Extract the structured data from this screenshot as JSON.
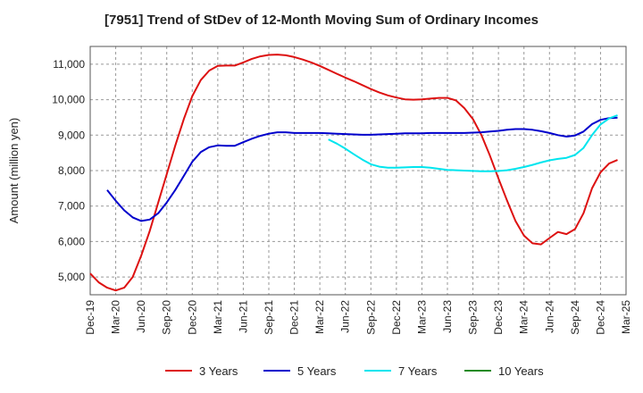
{
  "chart_data": {
    "type": "line",
    "title": "[7951]  Trend of StDev of 12-Month Moving Sum of Ordinary Incomes",
    "xlabel": "",
    "ylabel": "Amount (million yen)",
    "ylim": [
      4500,
      11500
    ],
    "yticks": [
      5000,
      6000,
      7000,
      8000,
      9000,
      10000,
      11000
    ],
    "ytick_labels": [
      "5,000",
      "6,000",
      "7,000",
      "8,000",
      "9,000",
      "10,000",
      "11,000"
    ],
    "x_start": "Dec-19",
    "xtick_labels": [
      "Dec-19",
      "Mar-20",
      "Jun-20",
      "Sep-20",
      "Dec-20",
      "Mar-21",
      "Jun-21",
      "Sep-21",
      "Dec-21",
      "Mar-22",
      "Jun-22",
      "Sep-22",
      "Dec-22",
      "Mar-23",
      "Jun-23",
      "Sep-23",
      "Dec-23",
      "Mar-24",
      "Jun-24",
      "Sep-24",
      "Dec-24",
      "Mar-25"
    ],
    "grid": true,
    "legend_position": "bottom",
    "series": [
      {
        "name": "3 Years",
        "color": "#dd1111",
        "start": "Dec-19",
        "values": [
          5100,
          4850,
          4700,
          4620,
          4700,
          5000,
          5600,
          6300,
          7100,
          7900,
          8700,
          9450,
          10100,
          10550,
          10820,
          10950,
          10960,
          10960,
          11050,
          11150,
          11220,
          11260,
          11270,
          11250,
          11200,
          11130,
          11050,
          10950,
          10840,
          10730,
          10620,
          10520,
          10410,
          10300,
          10200,
          10120,
          10060,
          10010,
          10000,
          10010,
          10030,
          10050,
          10050,
          9980,
          9760,
          9450,
          9000,
          8420,
          7780,
          7160,
          6580,
          6170,
          5950,
          5920,
          6100,
          6270,
          6210,
          6350,
          6800,
          7500,
          7950,
          8200,
          8300
        ]
      },
      {
        "name": "5 Years",
        "color": "#0000cc",
        "start": "Dec-19",
        "values": [
          null,
          null,
          7450,
          7150,
          6880,
          6680,
          6580,
          6620,
          6800,
          7100,
          7450,
          7850,
          8250,
          8520,
          8660,
          8710,
          8700,
          8700,
          8800,
          8900,
          8980,
          9040,
          9080,
          9080,
          9060,
          9060,
          9060,
          9060,
          9050,
          9040,
          9030,
          9020,
          9010,
          9010,
          9020,
          9030,
          9040,
          9050,
          9050,
          9050,
          9060,
          9060,
          9060,
          9060,
          9060,
          9070,
          9080,
          9100,
          9120,
          9150,
          9170,
          9170,
          9150,
          9110,
          9060,
          9000,
          8960,
          8990,
          9100,
          9310,
          9430,
          9480,
          9490
        ]
      },
      {
        "name": "7 Years",
        "color": "#00e5ee",
        "start": "Dec-19",
        "values": [
          null,
          null,
          null,
          null,
          null,
          null,
          null,
          null,
          null,
          null,
          null,
          null,
          null,
          null,
          null,
          null,
          null,
          null,
          null,
          null,
          null,
          null,
          null,
          null,
          null,
          null,
          null,
          null,
          8880,
          8760,
          8620,
          8460,
          8310,
          8180,
          8110,
          8080,
          8080,
          8090,
          8100,
          8100,
          8080,
          8050,
          8020,
          8010,
          8000,
          7990,
          7980,
          7980,
          7990,
          8010,
          8050,
          8100,
          8160,
          8230,
          8290,
          8330,
          8360,
          8440,
          8640,
          9000,
          9300,
          9470,
          9560
        ]
      },
      {
        "name": "10 Years",
        "color": "#228b22",
        "start": "Dec-19",
        "values": []
      }
    ]
  }
}
